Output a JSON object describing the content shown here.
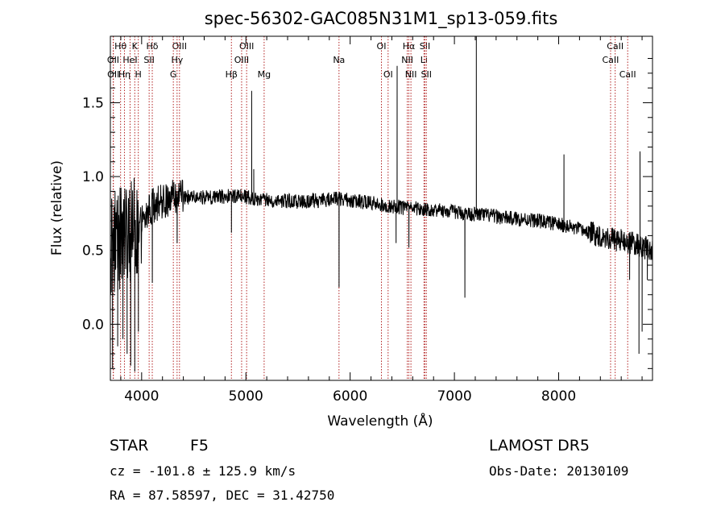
{
  "chart_data": {
    "type": "line",
    "title": "spec-56302-GAC085N31M1_sp13-059.fits",
    "xlabel": "Wavelength (Å)",
    "ylabel": "Flux (relative)",
    "xlim": [
      3700,
      8900
    ],
    "ylim": [
      -0.38,
      1.95
    ],
    "x_ticks": [
      4000,
      5000,
      6000,
      7000,
      8000
    ],
    "x_tick_labels": [
      "4000",
      "5000",
      "6000",
      "7000",
      "8000"
    ],
    "y_ticks": [
      0.0,
      0.5,
      1.0,
      1.5
    ],
    "y_tick_labels": [
      "0.0",
      "0.5",
      "1.0",
      "1.5"
    ],
    "line_color": "#000000",
    "marker_color": "#b22222",
    "spectral_lines": [
      {
        "label": "Hθ",
        "wavelength": 3798,
        "row": 0
      },
      {
        "label": "K",
        "wavelength": 3934,
        "row": 0
      },
      {
        "label": "Hδ",
        "wavelength": 4102,
        "row": 0
      },
      {
        "label": "OIII",
        "wavelength": 4363,
        "row": 0
      },
      {
        "label": "OIII",
        "wavelength": 5007,
        "row": 0
      },
      {
        "label": "OI",
        "wavelength": 6300,
        "row": 0
      },
      {
        "label": "Hα",
        "wavelength": 6563,
        "row": 0
      },
      {
        "label": "SII",
        "wavelength": 6717,
        "row": 0
      },
      {
        "label": "CaII",
        "wavelength": 8542,
        "row": 0
      },
      {
        "label": "OII",
        "wavelength": 3727,
        "row": 1
      },
      {
        "label": "HeI",
        "wavelength": 3889,
        "row": 1
      },
      {
        "label": "SII",
        "wavelength": 4072,
        "row": 1
      },
      {
        "label": "Hγ",
        "wavelength": 4340,
        "row": 1
      },
      {
        "label": "OIII",
        "wavelength": 4959,
        "row": 1
      },
      {
        "label": "NII",
        "wavelength": 6548,
        "row": 1
      },
      {
        "label": "Li",
        "wavelength": 6708,
        "row": 1
      },
      {
        "label": "CaII",
        "wavelength": 8498,
        "row": 1
      },
      {
        "label": "OII",
        "wavelength": 3729,
        "row": 2
      },
      {
        "label": "Hη",
        "wavelength": 3835,
        "row": 2
      },
      {
        "label": "H",
        "wavelength": 3968,
        "row": 2
      },
      {
        "label": "G",
        "wavelength": 4304,
        "row": 2
      },
      {
        "label": "Hβ",
        "wavelength": 4861,
        "row": 2
      },
      {
        "label": "Mg",
        "wavelength": 5175,
        "row": 2
      },
      {
        "label": "Na",
        "wavelength": 5893,
        "row": 1
      },
      {
        "label": "OI",
        "wavelength": 6364,
        "row": 2
      },
      {
        "label": "NII",
        "wavelength": 6583,
        "row": 2
      },
      {
        "label": "SII",
        "wavelength": 6731,
        "row": 2
      },
      {
        "label": "CaII",
        "wavelength": 8662,
        "row": 2
      }
    ],
    "continuum": [
      [
        3700,
        0.55
      ],
      [
        3800,
        0.58
      ],
      [
        3900,
        0.62
      ],
      [
        4000,
        0.74
      ],
      [
        4100,
        0.8
      ],
      [
        4300,
        0.86
      ],
      [
        4500,
        0.86
      ],
      [
        4700,
        0.86
      ],
      [
        4900,
        0.87
      ],
      [
        5100,
        0.85
      ],
      [
        5300,
        0.84
      ],
      [
        5500,
        0.83
      ],
      [
        5700,
        0.84
      ],
      [
        5900,
        0.85
      ],
      [
        6100,
        0.83
      ],
      [
        6300,
        0.81
      ],
      [
        6500,
        0.79
      ],
      [
        6700,
        0.78
      ],
      [
        6900,
        0.77
      ],
      [
        7100,
        0.75
      ],
      [
        7300,
        0.74
      ],
      [
        7500,
        0.72
      ],
      [
        7700,
        0.71
      ],
      [
        7900,
        0.69
      ],
      [
        8100,
        0.66
      ],
      [
        8300,
        0.62
      ],
      [
        8500,
        0.58
      ],
      [
        8700,
        0.55
      ],
      [
        8900,
        0.5
      ]
    ],
    "features": [
      [
        3720,
        -0.3
      ],
      [
        3770,
        -0.15
      ],
      [
        3820,
        -0.1
      ],
      [
        3860,
        -0.2
      ],
      [
        3895,
        -0.28
      ],
      [
        3934,
        -0.32
      ],
      [
        3968,
        -0.05
      ],
      [
        4102,
        0.28
      ],
      [
        4340,
        0.55
      ],
      [
        4861,
        0.62
      ],
      [
        5055,
        1.58
      ],
      [
        5075,
        1.05
      ],
      [
        5893,
        0.25
      ],
      [
        6450,
        1.75
      ],
      [
        6440,
        0.55
      ],
      [
        6563,
        0.52
      ],
      [
        7100,
        0.18
      ],
      [
        7210,
        1.95
      ],
      [
        8050,
        1.15
      ],
      [
        8680,
        0.3
      ],
      [
        8770,
        -0.2
      ],
      [
        8780,
        1.17
      ],
      [
        8800,
        -0.05
      ],
      [
        8850,
        0.3
      ],
      [
        8900,
        0.42
      ]
    ]
  },
  "footer": {
    "object_type": "STAR",
    "subclass": "F5",
    "survey": "LAMOST  DR5",
    "redshift": "cz = -101.8 ± 125.9 km/s",
    "obs_date": "Obs-Date: 20130109",
    "coords": "RA =  87.58597, DEC =  31.42750"
  }
}
